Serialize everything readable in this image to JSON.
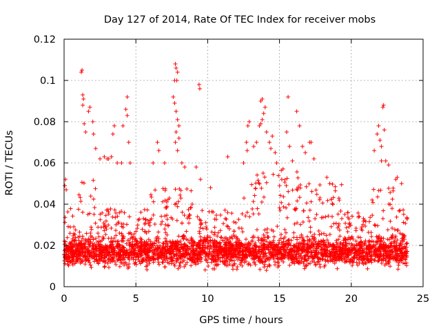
{
  "chart_data": {
    "type": "scatter",
    "title": "Day 127 of 2014, Rate Of TEC Index for receiver mobs",
    "xlabel": "GPS time / hours",
    "ylabel": "ROTI / TECUs",
    "xlim": [
      0,
      25
    ],
    "ylim": [
      0,
      0.12
    ],
    "xticks": [
      0,
      5,
      10,
      15,
      20,
      25
    ],
    "xtick_labels": [
      "0",
      "5",
      "10",
      "15",
      "20",
      "25"
    ],
    "yticks": [
      0,
      0.02,
      0.04,
      0.06,
      0.08,
      0.1,
      0.12
    ],
    "ytick_labels": [
      "0",
      "0.02",
      "0.04",
      "0.06",
      "0.08",
      "0.1",
      "0.12"
    ],
    "grid": true,
    "marker": "+",
    "color": "#ff0000",
    "series": [
      {
        "name": "ROTI",
        "points": [
          [
            1.2,
            0.104
          ],
          [
            1.25,
            0.105
          ],
          [
            1.3,
            0.093
          ],
          [
            1.35,
            0.091
          ],
          [
            1.3,
            0.088
          ],
          [
            1.4,
            0.079
          ],
          [
            1.5,
            0.075
          ],
          [
            1.7,
            0.085
          ],
          [
            1.8,
            0.087
          ],
          [
            2.0,
            0.08
          ],
          [
            2.05,
            0.074
          ],
          [
            2.2,
            0.067
          ],
          [
            2.5,
            0.062
          ],
          [
            2.8,
            0.063
          ],
          [
            3.0,
            0.062
          ],
          [
            3.1,
            0.062
          ],
          [
            3.3,
            0.063
          ],
          [
            3.4,
            0.074
          ],
          [
            3.5,
            0.078
          ],
          [
            3.7,
            0.06
          ],
          [
            4.0,
            0.06
          ],
          [
            4.1,
            0.078
          ],
          [
            4.3,
            0.086
          ],
          [
            4.4,
            0.083
          ],
          [
            4.4,
            0.092
          ],
          [
            4.5,
            0.07
          ],
          [
            4.6,
            0.06
          ],
          [
            6.2,
            0.06
          ],
          [
            6.5,
            0.07
          ],
          [
            6.6,
            0.066
          ],
          [
            7.0,
            0.06
          ],
          [
            7.6,
            0.092
          ],
          [
            7.7,
            0.1
          ],
          [
            7.75,
            0.108
          ],
          [
            7.8,
            0.106
          ],
          [
            7.9,
            0.104
          ],
          [
            7.85,
            0.1
          ],
          [
            7.7,
            0.089
          ],
          [
            7.8,
            0.085
          ],
          [
            7.9,
            0.081
          ],
          [
            8.0,
            0.078
          ],
          [
            7.8,
            0.075
          ],
          [
            7.75,
            0.07
          ],
          [
            7.9,
            0.066
          ],
          [
            8.0,
            0.072
          ],
          [
            8.2,
            0.06
          ],
          [
            8.4,
            0.058
          ],
          [
            9.4,
            0.098
          ],
          [
            9.45,
            0.096
          ],
          [
            9.2,
            0.058
          ],
          [
            9.5,
            0.052
          ],
          [
            10.2,
            0.048
          ],
          [
            11.4,
            0.063
          ],
          [
            12.5,
            0.06
          ],
          [
            12.7,
            0.07
          ],
          [
            12.8,
            0.078
          ],
          [
            12.9,
            0.08
          ],
          [
            12.75,
            0.066
          ],
          [
            13.2,
            0.068
          ],
          [
            13.4,
            0.07
          ],
          [
            13.6,
            0.078
          ],
          [
            13.7,
            0.079
          ],
          [
            13.8,
            0.081
          ],
          [
            13.9,
            0.084
          ],
          [
            13.7,
            0.09
          ],
          [
            13.8,
            0.091
          ],
          [
            14.0,
            0.087
          ],
          [
            14.1,
            0.075
          ],
          [
            14.3,
            0.07
          ],
          [
            14.4,
            0.067
          ],
          [
            14.5,
            0.073
          ],
          [
            14.7,
            0.065
          ],
          [
            14.8,
            0.06
          ],
          [
            15.6,
            0.092
          ],
          [
            15.5,
            0.075
          ],
          [
            15.7,
            0.068
          ],
          [
            15.9,
            0.061
          ],
          [
            16.2,
            0.085
          ],
          [
            16.4,
            0.078
          ],
          [
            16.6,
            0.068
          ],
          [
            16.8,
            0.065
          ],
          [
            17.1,
            0.07
          ],
          [
            17.2,
            0.07
          ],
          [
            17.4,
            0.062
          ],
          [
            18.3,
            0.053
          ],
          [
            18.5,
            0.05
          ],
          [
            21.6,
            0.066
          ],
          [
            21.8,
            0.074
          ],
          [
            21.9,
            0.078
          ],
          [
            22.0,
            0.071
          ],
          [
            22.1,
            0.068
          ],
          [
            22.2,
            0.087
          ],
          [
            22.25,
            0.088
          ],
          [
            22.3,
            0.076
          ],
          [
            22.1,
            0.061
          ],
          [
            22.4,
            0.061
          ],
          [
            22.6,
            0.059
          ],
          [
            23.1,
            0.052
          ],
          [
            23.2,
            0.053
          ],
          [
            0.05,
            0.049
          ],
          [
            0.1,
            0.052
          ],
          [
            0.15,
            0.047
          ],
          [
            23.5,
            0.05
          ],
          [
            23.7,
            0.023
          ]
        ]
      }
    ]
  }
}
